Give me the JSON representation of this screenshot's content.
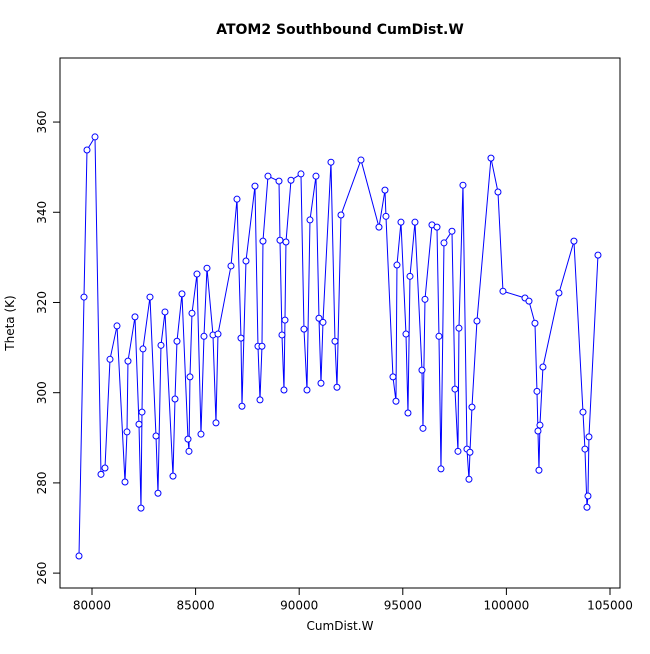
{
  "chart_data": {
    "type": "line",
    "title": "ATOM2 Southbound CumDist.W",
    "x_label": "CumDist.W",
    "y_label": "Theta (K)",
    "x": [
      79373,
      79614,
      79759,
      80145,
      80434,
      80627,
      80869,
      81207,
      81593,
      81689,
      81737,
      82075,
      82268,
      82365,
      82413,
      82461,
      82799,
      83089,
      83185,
      83330,
      83523,
      83909,
      84006,
      84102,
      84343,
      84633,
      84681,
      84729,
      84826,
      85067,
      85260,
      85405,
      85550,
      85839,
      85984,
      86081,
      86708,
      86998,
      87191,
      87239,
      87432,
      87866,
      88011,
      88108,
      88204,
      88252,
      88494,
      89025,
      89073,
      89169,
      89266,
      89314,
      89362,
      89604,
      90086,
      90231,
      90376,
      90521,
      90810,
      90955,
      91052,
      91148,
      91534,
      91727,
      91824,
      92017,
      92982,
      93851,
      94140,
      94188,
      94526,
      94671,
      94719,
      94912,
      95154,
      95250,
      95347,
      95588,
      95926,
      95974,
      96071,
      96408,
      96650,
      96746,
      96843,
      96988,
      97374,
      97518,
      97663,
      97711,
      97904,
      98098,
      98194,
      98242,
      98339,
      98580,
      99256,
      99594,
      99835,
      100897,
      101090,
      101379,
      101476,
      101524,
      101572,
      101620,
      101765,
      102537,
      103261,
      103696,
      103792,
      103889,
      103937,
      103985,
      104420
    ],
    "series": [
      {
        "name": "Theta",
        "color": "#0000ff",
        "values": [
          263.8,
          321.2,
          353.8,
          356.7,
          281.9,
          283.3,
          307.4,
          314.8,
          280.2,
          291.3,
          307.0,
          316.8,
          293.0,
          274.4,
          295.7,
          309.7,
          321.2,
          290.4,
          277.7,
          310.5,
          317.9,
          281.5,
          298.6,
          311.4,
          321.9,
          289.7,
          287.0,
          303.5,
          317.6,
          326.3,
          290.8,
          312.5,
          327.6,
          312.8,
          293.3,
          313.0,
          328.1,
          342.9,
          312.1,
          297.0,
          329.2,
          345.8,
          310.3,
          298.4,
          310.3,
          333.6,
          348.0,
          346.9,
          333.8,
          312.8,
          300.6,
          316.1,
          333.4,
          347.1,
          348.5,
          314.1,
          300.6,
          338.3,
          348.0,
          316.5,
          302.1,
          315.6,
          351.1,
          311.4,
          301.2,
          339.4,
          351.6,
          336.7,
          344.9,
          339.1,
          303.5,
          298.1,
          328.3,
          337.8,
          313.0,
          295.5,
          325.8,
          337.8,
          305.0,
          292.1,
          320.7,
          337.2,
          336.7,
          312.5,
          283.1,
          333.2,
          335.8,
          300.8,
          287.0,
          314.3,
          346.0,
          287.5,
          280.8,
          286.8,
          296.8,
          315.9,
          352.0,
          344.5,
          322.5,
          321.0,
          320.3,
          315.4,
          300.3,
          291.5,
          282.8,
          292.8,
          305.7,
          322.1,
          333.6,
          295.7,
          287.5,
          274.6,
          277.1,
          290.2,
          330.5
        ]
      }
    ],
    "xlim": [
      78456,
      105483
    ],
    "ylim": [
      256.7,
      374.2
    ],
    "xticks": [
      80000,
      85000,
      90000,
      95000,
      100000,
      105000
    ],
    "yticks": [
      260,
      280,
      300,
      320,
      340,
      360
    ]
  }
}
